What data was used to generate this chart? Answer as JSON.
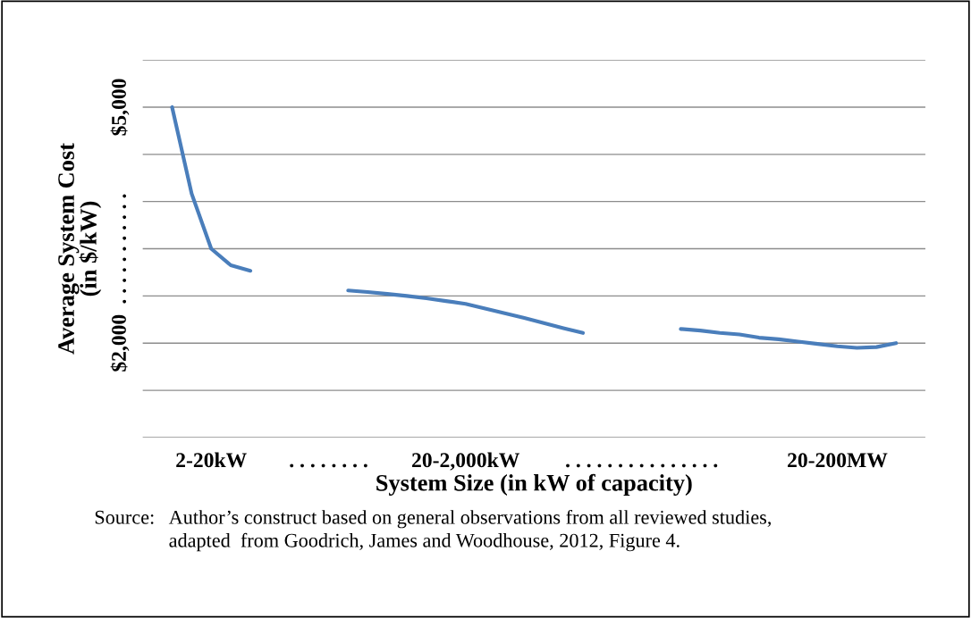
{
  "chart_data": {
    "type": "line",
    "xlabel": "System Size (in kW of capacity)",
    "ylabel": "Average System Cost\n(in $/kW)",
    "categories": [
      null,
      null,
      null,
      "2-20kW",
      null,
      null,
      null,
      null,
      null,
      ". . . . . . . .",
      null,
      null,
      null,
      null,
      null,
      null,
      "20-2,000kW",
      null,
      null,
      null,
      null,
      null,
      null,
      null,
      null,
      ". . . . . . . . . . . . . . .",
      null,
      null,
      null,
      null,
      null,
      null,
      null,
      null,
      null,
      "20-200MW",
      null,
      null,
      null,
      null
    ],
    "series": [
      {
        "color": "#4a7ebb",
        "values": [
          null,
          5000,
          3900,
          3200,
          2990,
          2920,
          null,
          null,
          null,
          null,
          2670,
          2650,
          2625,
          2600,
          2570,
          2535,
          2500,
          2440,
          2380,
          2320,
          2255,
          2190,
          2130,
          null,
          null,
          null,
          null,
          2180,
          2160,
          2130,
          2110,
          2070,
          2050,
          2020,
          1990,
          1960,
          1940,
          1950,
          2000,
          null
        ]
      }
    ],
    "ylim": [
      800,
      5600
    ],
    "yticks": [
      {
        "value": 800,
        "label": null
      },
      {
        "value": 1400,
        "label": null
      },
      {
        "value": 2000,
        "label": "$2,000"
      },
      {
        "value": 2600,
        "label": null
      },
      {
        "value": 3200,
        "label": ". . . . . . . . . . ."
      },
      {
        "value": 3800,
        "label": null
      },
      {
        "value": 4400,
        "label": null
      },
      {
        "value": 5000,
        "label": "$5,000"
      },
      {
        "value": 5600,
        "label": null
      }
    ],
    "grid": "y",
    "legend": false,
    "marker": "none",
    "line_style": "solid",
    "annotations": [
      "Source:   Author’s construct based on general observations from all reviewed studies,\n               adapted  from Goodrich, James and Woodhouse, 2012, Figure 4."
    ]
  }
}
